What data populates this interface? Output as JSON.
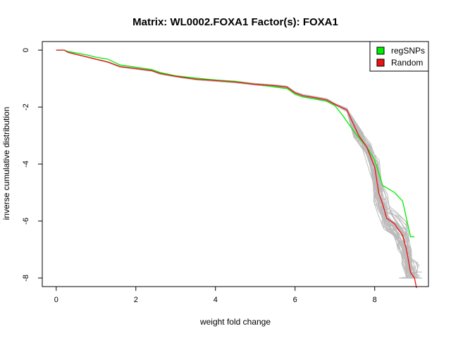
{
  "chart_data": {
    "type": "line",
    "title": "Matrix: WL0002.FOXA1 Factor(s): FOXA1",
    "xlabel": "weight fold change",
    "ylabel": "inverse cumulative distribution",
    "xlim": [
      -0.35,
      9.35
    ],
    "ylim": [
      -8.3,
      0.3
    ],
    "x_ticks": [
      0,
      2,
      4,
      6,
      8
    ],
    "y_ticks": [
      0,
      -2,
      -4,
      -6,
      -8
    ],
    "grid": false,
    "legend_position": "top-right",
    "colors": {
      "regSNPs": "#00ee00",
      "Random": "#ee1111",
      "background_runs": "#bbbbbb",
      "axis": "#000000"
    },
    "legend": [
      {
        "label": "regSNPs",
        "color": "#00ee00"
      },
      {
        "label": "Random",
        "color": "#ee1111"
      }
    ],
    "series": [
      {
        "name": "regSNPs",
        "x": [
          0,
          0.2,
          0.3,
          0.5,
          0.8,
          1.0,
          1.3,
          1.6,
          2.0,
          2.4,
          2.6,
          3.0,
          3.5,
          4.0,
          4.5,
          5.0,
          5.5,
          5.8,
          6.0,
          6.2,
          6.5,
          6.8,
          7.0,
          7.2,
          7.5,
          7.8,
          8.0,
          8.2,
          8.5,
          8.7,
          8.9,
          9.0
        ],
        "y": [
          0,
          0,
          -0.05,
          -0.1,
          -0.18,
          -0.25,
          -0.32,
          -0.52,
          -0.6,
          -0.68,
          -0.78,
          -0.9,
          -0.98,
          -1.05,
          -1.1,
          -1.2,
          -1.3,
          -1.35,
          -1.55,
          -1.65,
          -1.72,
          -1.8,
          -1.95,
          -2.3,
          -2.9,
          -3.4,
          -3.85,
          -4.75,
          -5.0,
          -5.3,
          -6.55,
          -6.55
        ]
      },
      {
        "name": "Random",
        "x": [
          0,
          0.2,
          0.3,
          0.5,
          0.8,
          1.0,
          1.3,
          1.6,
          2.0,
          2.4,
          2.6,
          3.0,
          3.5,
          4.0,
          4.5,
          5.0,
          5.5,
          5.8,
          6.0,
          6.2,
          6.5,
          6.8,
          7.0,
          7.3,
          7.6,
          7.8,
          8.0,
          8.1,
          8.2,
          8.3,
          8.5,
          8.7,
          8.8,
          8.9,
          9.0,
          9.05
        ],
        "y": [
          0,
          0,
          -0.08,
          -0.15,
          -0.25,
          -0.32,
          -0.42,
          -0.58,
          -0.65,
          -0.72,
          -0.82,
          -0.92,
          -1.02,
          -1.07,
          -1.12,
          -1.2,
          -1.25,
          -1.3,
          -1.5,
          -1.6,
          -1.67,
          -1.75,
          -1.9,
          -2.1,
          -3.0,
          -3.4,
          -4.1,
          -5.0,
          -5.4,
          -5.9,
          -6.1,
          -6.5,
          -7.0,
          -7.8,
          -8.0,
          -8.35
        ]
      }
    ]
  }
}
